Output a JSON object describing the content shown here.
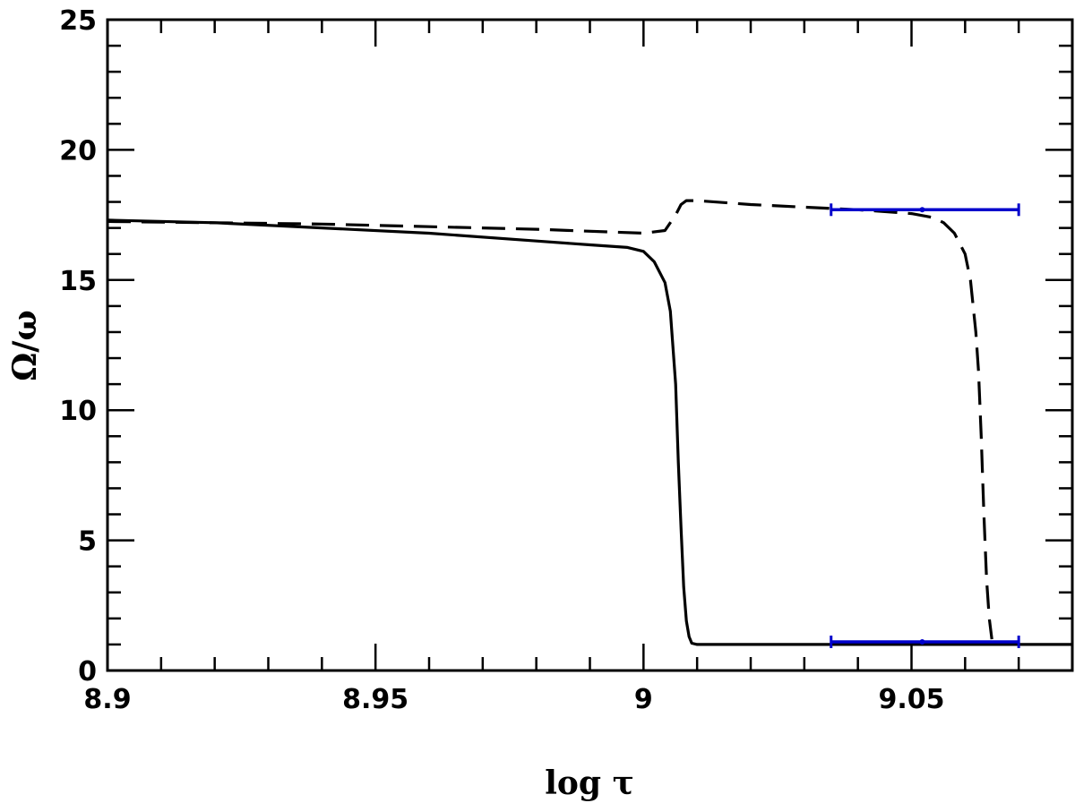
{
  "chart_data": {
    "type": "line",
    "title": "",
    "xlabel": "log τ",
    "ylabel": "Ω/ω",
    "xlim": [
      8.9,
      9.08
    ],
    "ylim": [
      0,
      25
    ],
    "x_ticks": [
      8.9,
      8.95,
      9,
      9.05
    ],
    "x_tick_labels": [
      "8.9",
      "8.95",
      "9",
      "9.05"
    ],
    "y_ticks": [
      0,
      5,
      10,
      15,
      20,
      25
    ],
    "y_tick_labels": [
      "0",
      "5",
      "10",
      "15",
      "20",
      "25"
    ],
    "grid": false,
    "legend": "none",
    "series": [
      {
        "style": "solid",
        "color": "#000000",
        "x": [
          8.9,
          8.92,
          8.94,
          8.96,
          8.98,
          8.99,
          8.997,
          9.0,
          9.002,
          9.004,
          9.005,
          9.006,
          9.0065,
          9.007,
          9.0075,
          9.008,
          9.0085,
          9.009,
          9.01,
          9.03,
          9.05,
          9.07,
          9.08
        ],
        "y": [
          17.3,
          17.2,
          17.0,
          16.8,
          16.5,
          16.35,
          16.25,
          16.1,
          15.7,
          14.9,
          13.8,
          11.0,
          8.0,
          5.5,
          3.2,
          1.9,
          1.3,
          1.05,
          1.0,
          1.0,
          1.0,
          1.0,
          1.0
        ]
      },
      {
        "style": "dashed",
        "color": "#000000",
        "x": [
          8.9,
          8.92,
          8.94,
          8.96,
          8.98,
          9.0,
          9.004,
          9.006,
          9.007,
          9.008,
          9.01,
          9.02,
          9.03,
          9.04,
          9.05,
          9.054,
          9.056,
          9.058,
          9.06,
          9.061,
          9.062,
          9.0625,
          9.063,
          9.0635,
          9.064,
          9.0645,
          9.065
        ],
        "y": [
          17.25,
          17.2,
          17.15,
          17.05,
          16.95,
          16.8,
          16.9,
          17.5,
          17.9,
          18.05,
          18.05,
          17.9,
          17.8,
          17.7,
          17.55,
          17.4,
          17.2,
          16.8,
          16.0,
          15.0,
          13.0,
          11.5,
          9.0,
          6.0,
          3.5,
          2.0,
          1.2
        ]
      }
    ],
    "error_bars": [
      {
        "color": "#0000cc",
        "y": 17.7,
        "xmin": 9.035,
        "xmax": 9.07,
        "center": 9.052
      },
      {
        "color": "#0000cc",
        "y": 1.1,
        "xmin": 9.035,
        "xmax": 9.07,
        "center": 9.052
      }
    ]
  }
}
